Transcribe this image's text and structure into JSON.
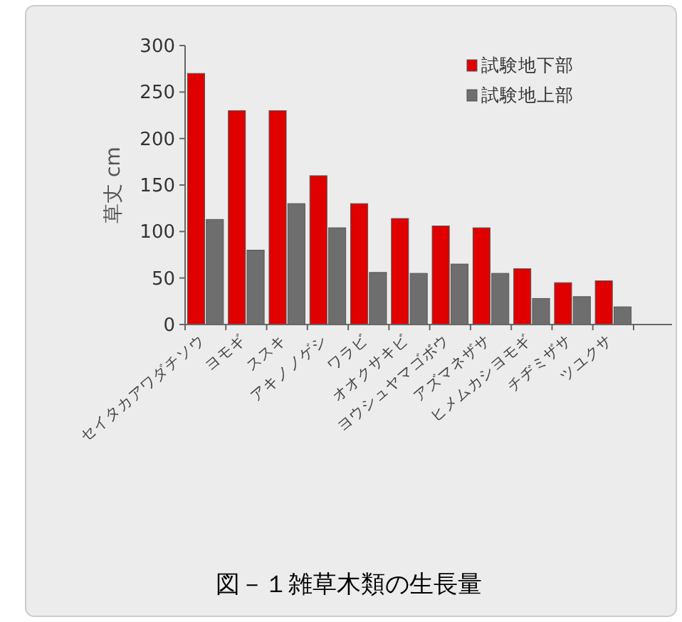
{
  "chart_data": {
    "type": "bar",
    "title": "図－１雑草木類の生長量",
    "ylabel": "草丈 cm",
    "categories": [
      "セイタカアワダチソウ",
      "ヨモギ",
      "ススキ",
      "アキノノゲシ",
      "ワラビ",
      "オオクサキビ",
      "ヨウシュヤマゴボウ",
      "アズマネザサ",
      "ヒメムカシヨモギ",
      "チヂミザサ",
      "ツユクサ"
    ],
    "series": [
      {
        "name": "試験地下部",
        "color": "#e00000",
        "values": [
          270,
          230,
          230,
          160,
          130,
          114,
          106,
          104,
          60,
          45,
          47
        ]
      },
      {
        "name": "試験地上部",
        "color": "#6e6e6e",
        "values": [
          113,
          80,
          130,
          104,
          56,
          55,
          65,
          55,
          28,
          30,
          19
        ]
      }
    ],
    "ylim": [
      0,
      300
    ],
    "yticks": [
      0,
      50,
      100,
      150,
      200,
      250,
      300
    ],
    "grid": false,
    "legend": "top right"
  }
}
